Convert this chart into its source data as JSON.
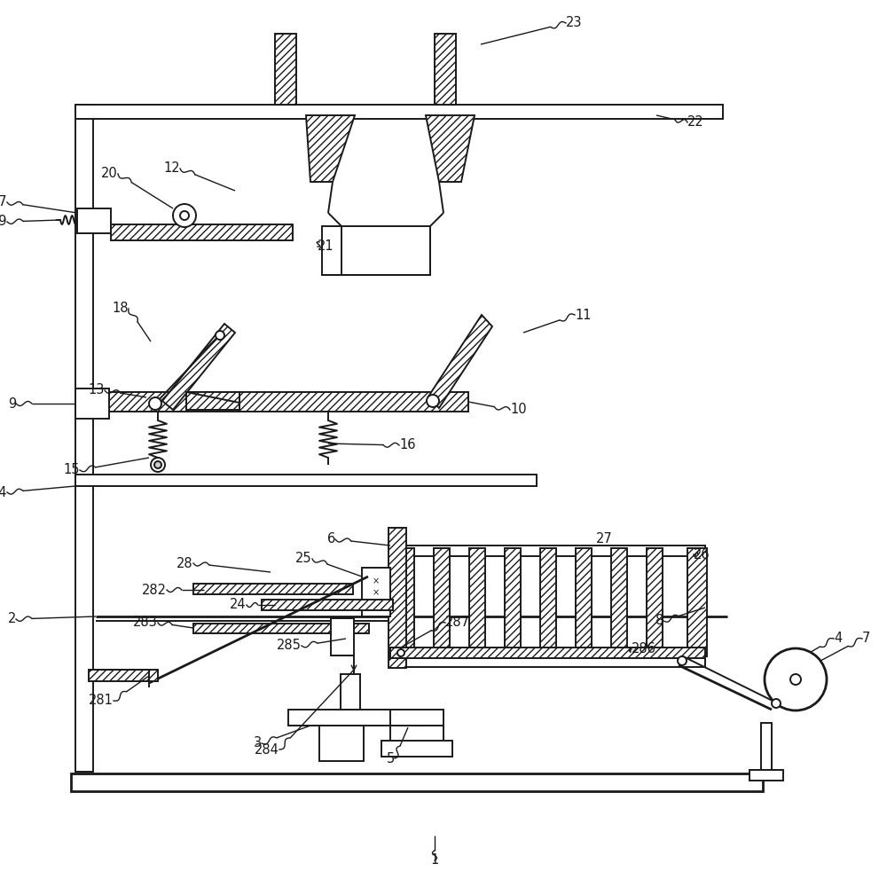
{
  "bg_color": "#ffffff",
  "line_color": "#1a1a1a",
  "lw": 1.4,
  "lw_thick": 2.0,
  "hatch": "////",
  "label_fontsize": 10.5
}
